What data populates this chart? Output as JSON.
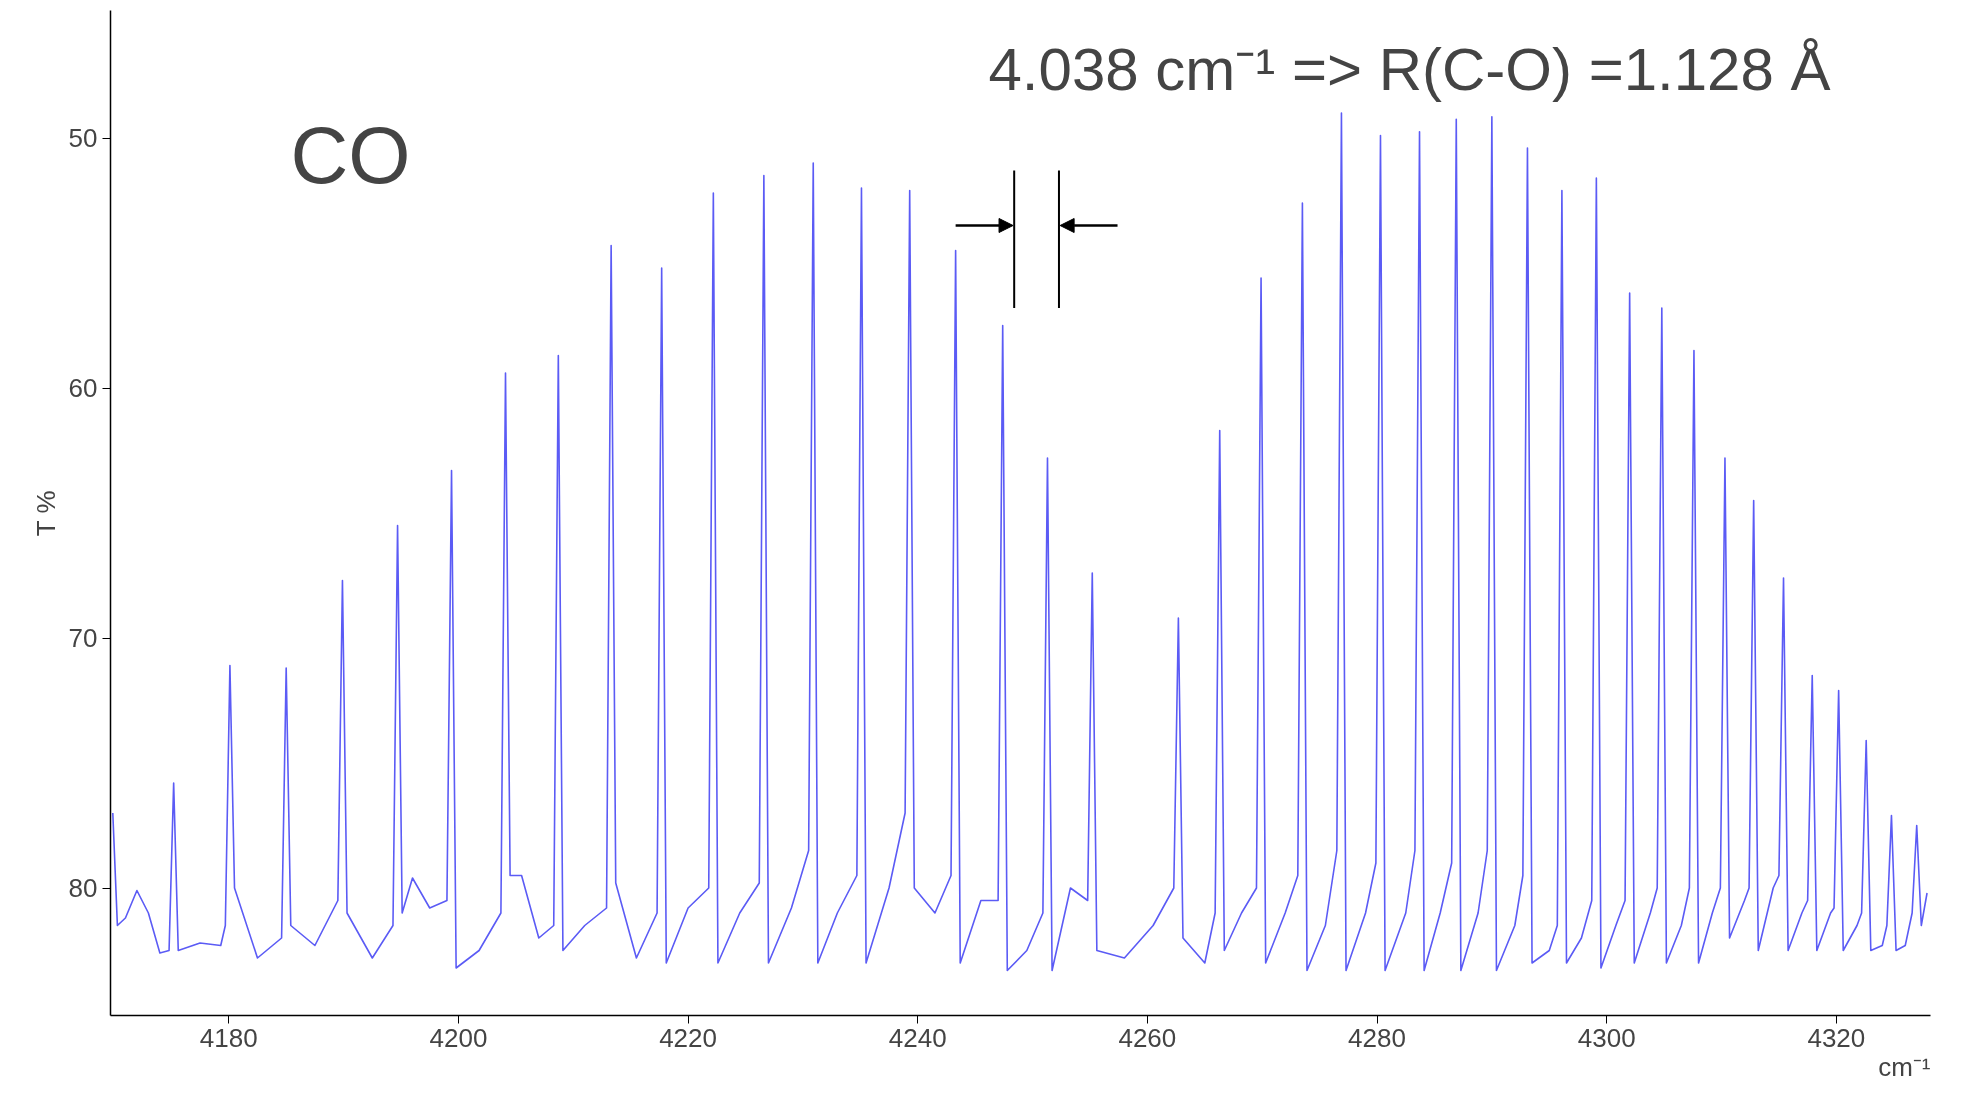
{
  "chart_data": {
    "type": "line",
    "title": "CO",
    "xlabel": "cm⁻¹",
    "ylabel": "T %",
    "annotations": [
      "4.038 cm⁻¹ => R(C-O) =1.128 Å"
    ],
    "xlim": [
      4169.7,
      4328.2
    ],
    "ylim": [
      85.1,
      44.9
    ],
    "xticks": [
      4180,
      4200,
      4220,
      4240,
      4260,
      4280,
      4300,
      4320
    ],
    "yticks": [
      50,
      60,
      70,
      80
    ],
    "grid": false,
    "marker": "none",
    "line_style": "solid",
    "series": [
      {
        "color": "#5b5bf5",
        "x": [
          4169.9,
          4170.3,
          4171.0,
          4172.0,
          4173.0,
          4174.0,
          4174.8,
          4175.2,
          4175.6,
          4177.5,
          4179.3,
          4179.7,
          4180.1,
          4180.5,
          4182.5,
          4184.6,
          4185.0,
          4185.4,
          4187.5,
          4189.5,
          4189.9,
          4190.3,
          4192.5,
          4194.3,
          4194.7,
          4195.1,
          4196.0,
          4197.5,
          4199.0,
          4199.4,
          4199.8,
          4201.8,
          4203.7,
          4204.1,
          4204.5,
          4205.5,
          4207.0,
          4208.3,
          4208.7,
          4209.1,
          4211.0,
          4212.9,
          4213.3,
          4213.7,
          4215.5,
          4217.3,
          4217.7,
          4218.1,
          4220.0,
          4221.8,
          4222.2,
          4222.6,
          4224.5,
          4226.2,
          4226.6,
          4227.0,
          4229.0,
          4230.5,
          4230.9,
          4231.3,
          4233.0,
          4234.7,
          4235.1,
          4235.5,
          4237.5,
          4238.9,
          4239.3,
          4239.7,
          4241.5,
          4242.9,
          4243.3,
          4243.7,
          4245.5,
          4247.0,
          4247.4,
          4247.8,
          4249.5,
          4250.9,
          4251.3,
          4251.7,
          4253.3,
          4254.8,
          4255.2,
          4255.6,
          4258.0,
          4260.5,
          4262.3,
          4262.7,
          4263.1,
          4265.0,
          4265.9,
          4266.3,
          4266.7,
          4268.2,
          4269.5,
          4269.9,
          4270.3,
          4272.0,
          4273.1,
          4273.5,
          4273.9,
          4275.5,
          4276.5,
          4276.9,
          4277.3,
          4279.0,
          4279.9,
          4280.3,
          4280.7,
          4282.5,
          4283.3,
          4283.7,
          4284.1,
          4285.5,
          4286.5,
          4286.9,
          4287.3,
          4288.8,
          4289.6,
          4290.0,
          4290.4,
          4292.0,
          4292.7,
          4293.1,
          4293.5,
          4295.0,
          4295.7,
          4296.1,
          4296.5,
          4297.8,
          4298.7,
          4299.1,
          4299.5,
          4300.8,
          4301.6,
          4302.0,
          4302.4,
          4303.8,
          4304.4,
          4304.8,
          4305.2,
          4306.5,
          4307.2,
          4307.6,
          4308.0,
          4309.2,
          4309.9,
          4310.3,
          4310.7,
          4312.0,
          4312.4,
          4312.8,
          4313.2,
          4314.5,
          4315.0,
          4315.4,
          4315.8,
          4317.0,
          4317.5,
          4317.9,
          4318.3,
          4319.5,
          4319.8,
          4320.2,
          4320.6,
          4321.8,
          4322.2,
          4322.6,
          4323.0,
          4324.0,
          4324.4,
          4324.8,
          4325.2,
          4326.0,
          4326.6,
          4327.0,
          4327.4,
          4327.9
        ],
        "values": [
          77.0,
          81.5,
          81.2,
          80.1,
          81.0,
          82.6,
          82.5,
          75.8,
          82.5,
          82.2,
          82.3,
          81.5,
          71.1,
          80.0,
          82.8,
          82.0,
          71.2,
          81.5,
          82.3,
          80.5,
          67.7,
          81.0,
          82.8,
          81.5,
          65.5,
          81.0,
          79.6,
          80.8,
          80.5,
          63.3,
          83.2,
          82.5,
          81.0,
          59.4,
          79.5,
          79.5,
          82.0,
          81.5,
          58.7,
          82.5,
          81.5,
          80.8,
          54.3,
          79.8,
          82.8,
          81.0,
          55.2,
          83.0,
          80.8,
          80.0,
          52.2,
          83.0,
          81.0,
          79.8,
          51.5,
          83.0,
          80.8,
          78.5,
          51.0,
          83.0,
          81.0,
          79.5,
          52.0,
          83.0,
          80.0,
          77.0,
          52.1,
          80.0,
          81.0,
          79.5,
          54.5,
          83.0,
          80.5,
          80.5,
          57.5,
          83.3,
          82.5,
          81.0,
          62.8,
          83.3,
          80.0,
          80.5,
          67.4,
          82.5,
          82.8,
          81.5,
          80.0,
          69.2,
          82.0,
          83.0,
          81.0,
          61.7,
          82.5,
          81.0,
          80.0,
          55.6,
          83.0,
          81.0,
          79.5,
          52.6,
          83.3,
          81.5,
          78.5,
          49.0,
          83.3,
          81.0,
          79.0,
          49.9,
          83.3,
          81.0,
          78.5,
          49.75,
          83.3,
          81.0,
          79.0,
          49.25,
          83.3,
          81.0,
          78.5,
          49.15,
          83.3,
          81.5,
          79.5,
          50.4,
          83.0,
          82.5,
          81.5,
          52.1,
          83.0,
          82.0,
          80.5,
          51.6,
          83.2,
          81.5,
          80.5,
          56.2,
          83.0,
          81.0,
          80.0,
          56.8,
          83.0,
          81.5,
          80.0,
          58.5,
          83.0,
          81.0,
          80.0,
          62.8,
          82.0,
          80.5,
          80.0,
          64.5,
          82.5,
          80.0,
          79.5,
          67.6,
          82.5,
          81.0,
          80.5,
          71.5,
          82.5,
          81.0,
          80.8,
          72.1,
          82.5,
          81.5,
          81.0,
          74.1,
          82.5,
          82.3,
          81.5,
          77.1,
          82.5,
          82.3,
          81.0,
          77.5,
          81.5,
          80.2
        ]
      }
    ]
  }
}
